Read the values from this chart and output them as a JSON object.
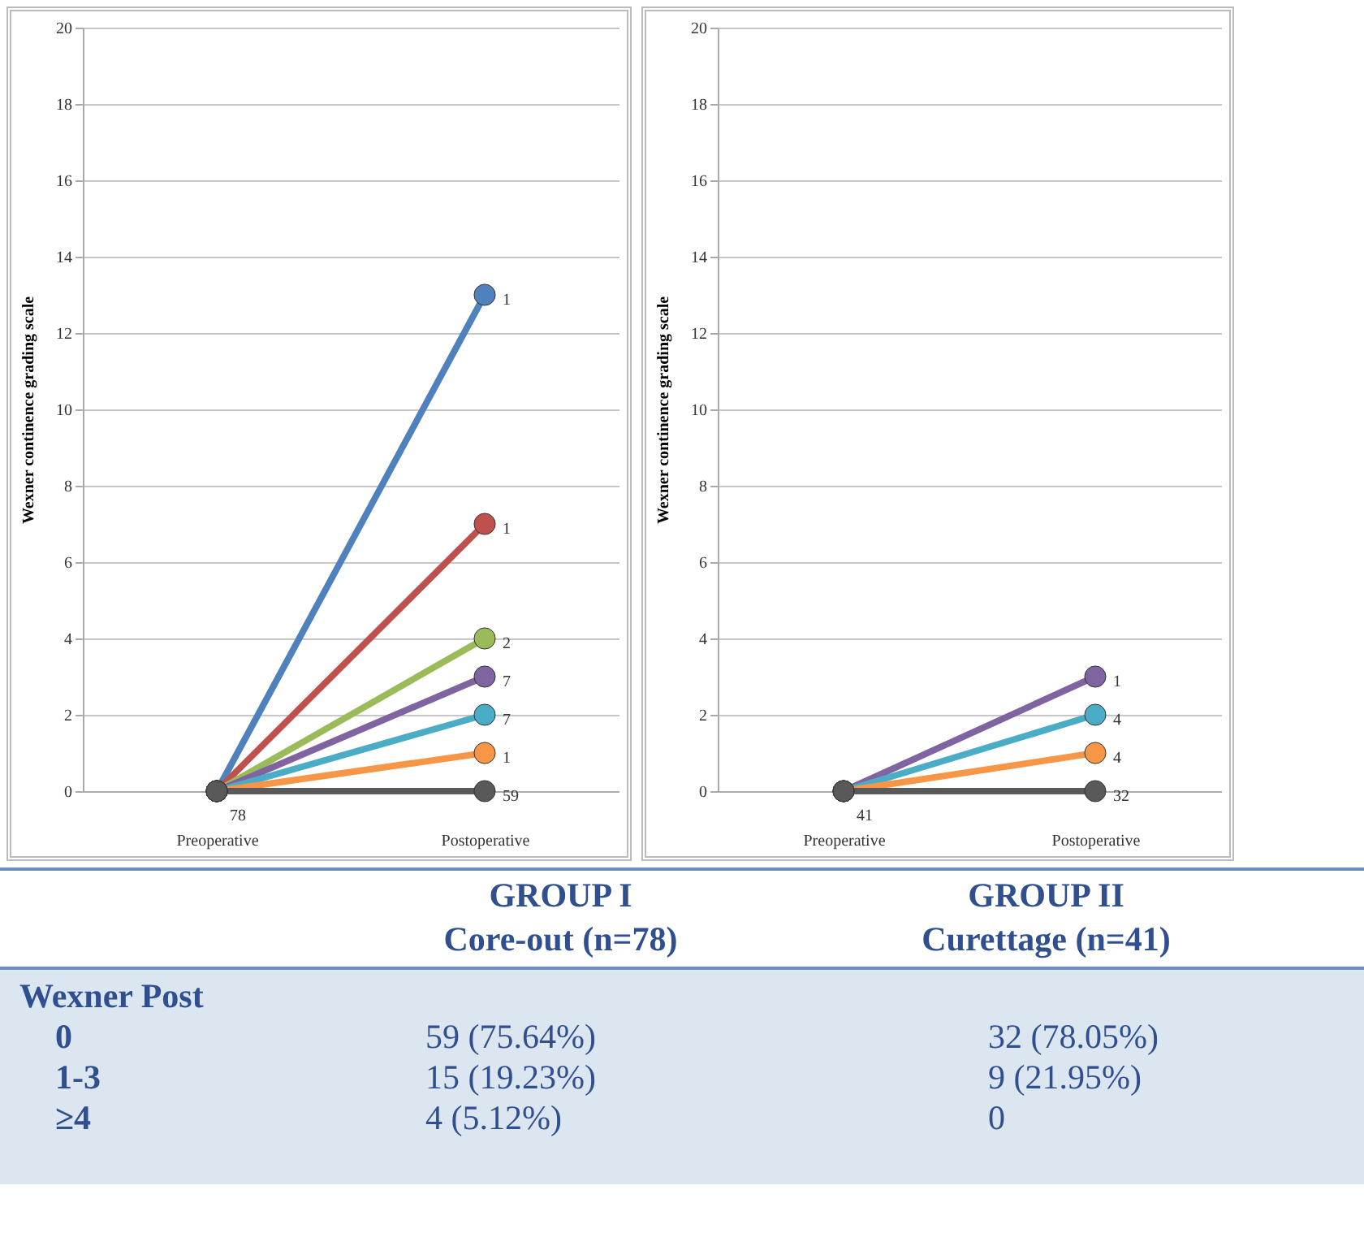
{
  "chart_data": [
    {
      "type": "line",
      "ylabel": "Wexner continence grading scale",
      "categories": [
        "Preoperative",
        "Postoperative"
      ],
      "ylim": [
        0,
        20
      ],
      "yticks": [
        0,
        2,
        4,
        6,
        8,
        10,
        12,
        14,
        16,
        18,
        20
      ],
      "grid": "y",
      "legend": false,
      "marker": "circle",
      "series": [
        {
          "color": "#4f81bd",
          "values": [
            0,
            13
          ]
        },
        {
          "color": "#c0504d",
          "values": [
            0,
            7
          ]
        },
        {
          "color": "#9bbb59",
          "values": [
            0,
            4
          ]
        },
        {
          "color": "#8064a2",
          "values": [
            0,
            3
          ]
        },
        {
          "color": "#4bacc6",
          "values": [
            0,
            2
          ]
        },
        {
          "color": "#f79646",
          "values": [
            0,
            1
          ]
        },
        {
          "color": "#595959",
          "values": [
            0,
            0
          ]
        }
      ],
      "annotations": [
        {
          "text": "1",
          "x": "Postoperative",
          "y": 13
        },
        {
          "text": "1",
          "x": "Postoperative",
          "y": 7
        },
        {
          "text": "2",
          "x": "Postoperative",
          "y": 4
        },
        {
          "text": "7",
          "x": "Postoperative",
          "y": 3
        },
        {
          "text": "7",
          "x": "Postoperative",
          "y": 2
        },
        {
          "text": "1",
          "x": "Postoperative",
          "y": 1
        },
        {
          "text": "59",
          "x": "Postoperative",
          "y": 0
        },
        {
          "text": "78",
          "x": "Preoperative",
          "y": 0
        }
      ]
    },
    {
      "type": "line",
      "ylabel": "Wexner continence grading scale",
      "categories": [
        "Preoperative",
        "Postoperative"
      ],
      "ylim": [
        0,
        20
      ],
      "yticks": [
        0,
        2,
        4,
        6,
        8,
        10,
        12,
        14,
        16,
        18,
        20
      ],
      "grid": "y",
      "legend": false,
      "marker": "circle",
      "series": [
        {
          "color": "#8064a2",
          "values": [
            0,
            3
          ]
        },
        {
          "color": "#4bacc6",
          "values": [
            0,
            2
          ]
        },
        {
          "color": "#f79646",
          "values": [
            0,
            1
          ]
        },
        {
          "color": "#595959",
          "values": [
            0,
            0
          ]
        }
      ],
      "annotations": [
        {
          "text": "1",
          "x": "Postoperative",
          "y": 3
        },
        {
          "text": "4",
          "x": "Postoperative",
          "y": 2
        },
        {
          "text": "4",
          "x": "Postoperative",
          "y": 1
        },
        {
          "text": "32",
          "x": "Postoperative",
          "y": 0
        },
        {
          "text": "41",
          "x": "Preoperative",
          "y": 0
        }
      ]
    },
    {
      "type": "other",
      "title": "Wexner Post",
      "categories": [
        "GROUP I\nCore-out (n=78)",
        "GROUP II\nCurettage (n=41)"
      ],
      "y_categories": [
        "0",
        "1-3",
        "≥4"
      ],
      "cell_labels": [
        [
          "59 (75.64%)",
          "32 (78.05%)"
        ],
        [
          "15 (19.23%)",
          "9 (21.95%)"
        ],
        [
          "4 (5.12%)",
          "0"
        ]
      ]
    }
  ]
}
